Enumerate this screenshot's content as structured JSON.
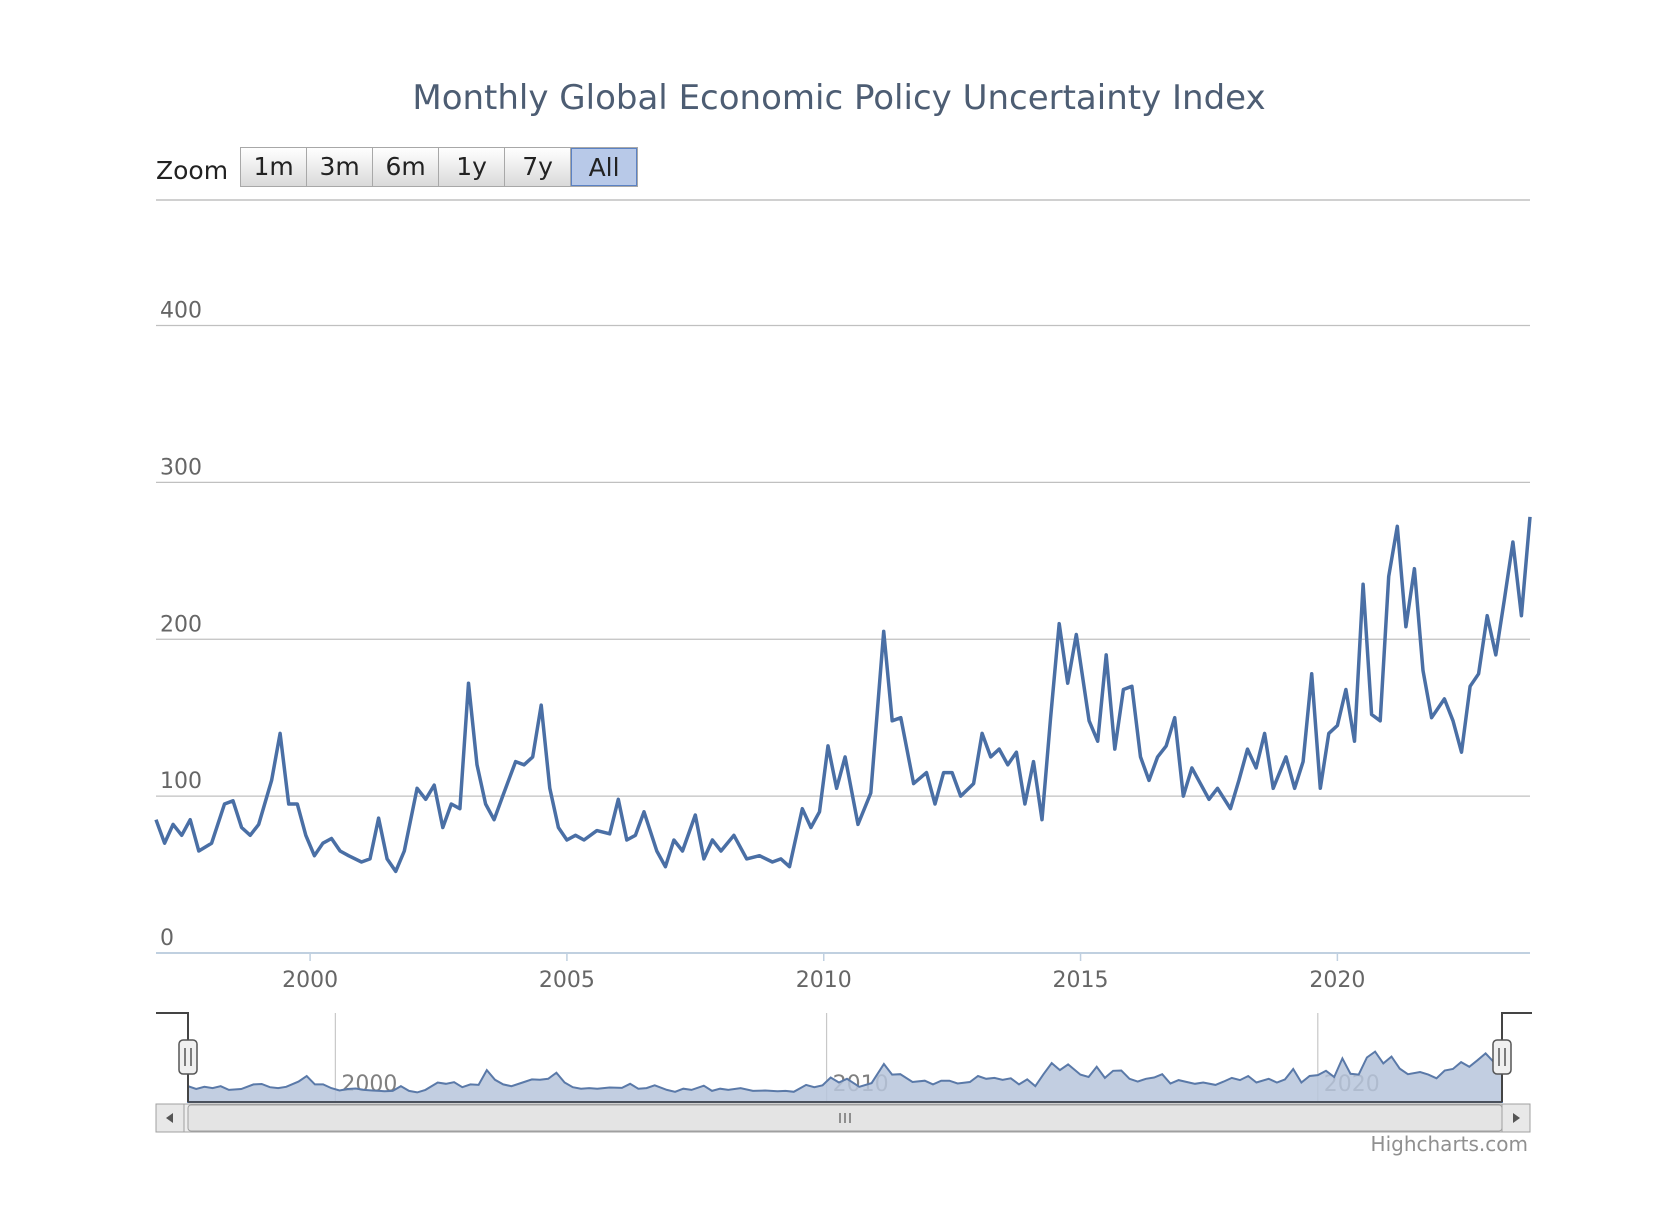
{
  "chart": {
    "title": "Monthly Global Economic Policy Uncertainty Index",
    "credit": "Highcharts.com",
    "zoom": {
      "label": "Zoom",
      "buttons": [
        "1m",
        "3m",
        "6m",
        "1y",
        "7y",
        "All"
      ],
      "selected": "All"
    },
    "colors": {
      "line": "#4a6fa5",
      "navigator_fill": "#b7c5dc",
      "navigator_line": "#5a79a8",
      "grid": "#c0c0c0",
      "axis": "#c0d0e0",
      "label": "#666666"
    },
    "navigator": {
      "tick_labels": [
        "2000",
        "2010",
        "2020"
      ]
    }
  },
  "chart_data": {
    "type": "line",
    "title": "Monthly Global Economic Policy Uncertainty Index",
    "xlabel": "",
    "ylabel": "",
    "x_ticks": [
      "2000",
      "2005",
      "2010",
      "2015",
      "2020"
    ],
    "y_ticks": [
      0,
      100,
      200,
      300,
      400
    ],
    "ylim": [
      0,
      480
    ],
    "xlim": [
      "1997-01",
      "2023-10"
    ],
    "grid": true,
    "series": [
      {
        "points": [
          [
            "1997-01",
            85
          ],
          [
            "1997-03",
            70
          ],
          [
            "1997-05",
            82
          ],
          [
            "1997-07",
            75
          ],
          [
            "1997-09",
            85
          ],
          [
            "1997-11",
            65
          ],
          [
            "1998-02",
            70
          ],
          [
            "1998-05",
            95
          ],
          [
            "1998-07",
            97
          ],
          [
            "1998-09",
            80
          ],
          [
            "1998-11",
            75
          ],
          [
            "1999-01",
            82
          ],
          [
            "1999-04",
            110
          ],
          [
            "1999-06",
            140
          ],
          [
            "1999-08",
            95
          ],
          [
            "1999-10",
            95
          ],
          [
            "1999-12",
            75
          ],
          [
            "2000-02",
            62
          ],
          [
            "2000-04",
            70
          ],
          [
            "2000-06",
            73
          ],
          [
            "2000-08",
            65
          ],
          [
            "2000-10",
            62
          ],
          [
            "2001-01",
            58
          ],
          [
            "2001-03",
            60
          ],
          [
            "2001-05",
            86
          ],
          [
            "2001-07",
            60
          ],
          [
            "2001-09",
            52
          ],
          [
            "2001-11",
            65
          ],
          [
            "2002-02",
            105
          ],
          [
            "2002-04",
            98
          ],
          [
            "2002-06",
            107
          ],
          [
            "2002-08",
            80
          ],
          [
            "2002-10",
            95
          ],
          [
            "2002-12",
            92
          ],
          [
            "2003-02",
            172
          ],
          [
            "2003-04",
            120
          ],
          [
            "2003-06",
            95
          ],
          [
            "2003-08",
            85
          ],
          [
            "2003-10",
            100
          ],
          [
            "2004-01",
            122
          ],
          [
            "2004-03",
            120
          ],
          [
            "2004-05",
            125
          ],
          [
            "2004-07",
            158
          ],
          [
            "2004-09",
            105
          ],
          [
            "2004-11",
            80
          ],
          [
            "2005-01",
            72
          ],
          [
            "2005-03",
            75
          ],
          [
            "2005-05",
            72
          ],
          [
            "2005-08",
            78
          ],
          [
            "2005-11",
            76
          ],
          [
            "2006-01",
            98
          ],
          [
            "2006-03",
            72
          ],
          [
            "2006-05",
            75
          ],
          [
            "2006-07",
            90
          ],
          [
            "2006-10",
            65
          ],
          [
            "2006-12",
            55
          ],
          [
            "2007-02",
            72
          ],
          [
            "2007-04",
            65
          ],
          [
            "2007-07",
            88
          ],
          [
            "2007-09",
            60
          ],
          [
            "2007-11",
            72
          ],
          [
            "2008-01",
            65
          ],
          [
            "2008-04",
            75
          ],
          [
            "2008-07",
            60
          ],
          [
            "2008-10",
            62
          ],
          [
            "2009-01",
            58
          ],
          [
            "2009-03",
            60
          ],
          [
            "2009-05",
            55
          ],
          [
            "2009-08",
            92
          ],
          [
            "2009-10",
            80
          ],
          [
            "2009-12",
            90
          ],
          [
            "2010-02",
            132
          ],
          [
            "2010-04",
            105
          ],
          [
            "2010-06",
            125
          ],
          [
            "2010-09",
            82
          ],
          [
            "2010-12",
            102
          ],
          [
            "2011-03",
            205
          ],
          [
            "2011-05",
            148
          ],
          [
            "2011-07",
            150
          ],
          [
            "2011-10",
            108
          ],
          [
            "2012-01",
            115
          ],
          [
            "2012-03",
            95
          ],
          [
            "2012-05",
            115
          ],
          [
            "2012-07",
            115
          ],
          [
            "2012-09",
            100
          ],
          [
            "2012-12",
            108
          ],
          [
            "2013-02",
            140
          ],
          [
            "2013-04",
            125
          ],
          [
            "2013-06",
            130
          ],
          [
            "2013-08",
            120
          ],
          [
            "2013-10",
            128
          ],
          [
            "2013-12",
            95
          ],
          [
            "2014-02",
            122
          ],
          [
            "2014-04",
            85
          ],
          [
            "2014-06",
            150
          ],
          [
            "2014-08",
            210
          ],
          [
            "2014-10",
            172
          ],
          [
            "2014-12",
            203
          ],
          [
            "2015-03",
            148
          ],
          [
            "2015-05",
            135
          ],
          [
            "2015-07",
            190
          ],
          [
            "2015-09",
            130
          ],
          [
            "2015-11",
            168
          ],
          [
            "2016-01",
            170
          ],
          [
            "2016-03",
            125
          ],
          [
            "2016-05",
            110
          ],
          [
            "2016-07",
            125
          ],
          [
            "2016-09",
            132
          ],
          [
            "2016-11",
            150
          ],
          [
            "2017-01",
            100
          ],
          [
            "2017-03",
            118
          ],
          [
            "2017-05",
            108
          ],
          [
            "2017-07",
            98
          ],
          [
            "2017-09",
            105
          ],
          [
            "2017-12",
            92
          ],
          [
            "2018-02",
            110
          ],
          [
            "2018-04",
            130
          ],
          [
            "2018-06",
            118
          ],
          [
            "2018-08",
            140
          ],
          [
            "2018-10",
            105
          ],
          [
            "2019-01",
            125
          ],
          [
            "2019-03",
            105
          ],
          [
            "2019-05",
            122
          ],
          [
            "2019-07",
            178
          ],
          [
            "2019-09",
            105
          ],
          [
            "2019-11",
            140
          ],
          [
            "2020-01",
            145
          ],
          [
            "2020-03",
            168
          ],
          [
            "2020-05",
            135
          ],
          [
            "2020-07",
            235
          ],
          [
            "2020-09",
            152
          ],
          [
            "2020-11",
            148
          ],
          [
            "2021-01",
            240
          ],
          [
            "2021-03",
            272
          ],
          [
            "2021-05",
            208
          ],
          [
            "2021-07",
            245
          ],
          [
            "2021-09",
            180
          ],
          [
            "2021-11",
            150
          ],
          [
            "2022-02",
            162
          ],
          [
            "2022-04",
            148
          ],
          [
            "2022-06",
            128
          ],
          [
            "2022-08",
            170
          ],
          [
            "2022-10",
            178
          ],
          [
            "2022-12",
            215
          ],
          [
            "2023-02",
            190
          ],
          [
            "2023-04",
            225
          ],
          [
            "2023-06",
            262
          ],
          [
            "2023-08",
            215
          ],
          [
            "2023-10",
            278
          ]
        ]
      }
    ]
  }
}
